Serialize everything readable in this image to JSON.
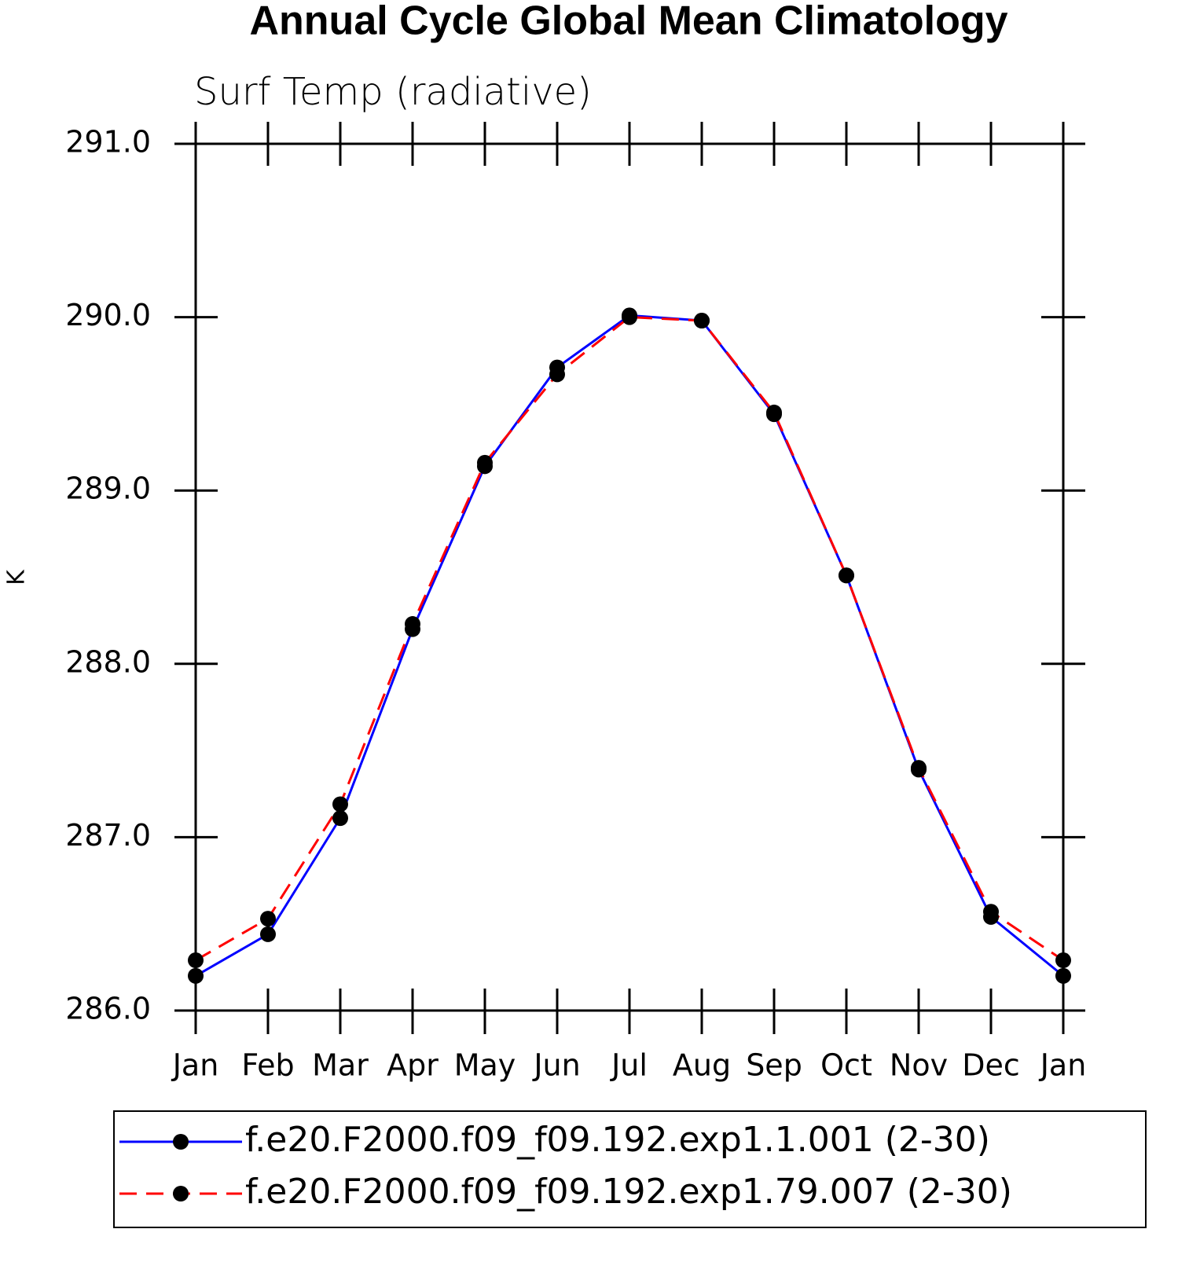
{
  "chart_data": {
    "type": "line",
    "title": "Annual Cycle Global Mean Climatology",
    "subtitle": "Surf Temp (radiative)",
    "y_label": "K",
    "categories": [
      "Jan",
      "Feb",
      "Mar",
      "Apr",
      "May",
      "Jun",
      "Jul",
      "Aug",
      "Sep",
      "Oct",
      "Nov",
      "Dec",
      "Jan"
    ],
    "series": [
      {
        "name": "f.e20.F2000.f09_f09.192.exp1.1.001 (2-30)",
        "color": "#0000ff",
        "dash": "solid",
        "values": [
          286.2,
          286.44,
          287.11,
          288.2,
          289.14,
          289.71,
          290.01,
          289.98,
          289.44,
          288.51,
          287.39,
          286.54,
          286.2
        ]
      },
      {
        "name": "f.e20.F2000.f09_f09.192.exp1.79.007 (2-30)",
        "color": "#ff0000",
        "dash": "dashed",
        "values": [
          286.29,
          286.53,
          287.19,
          288.23,
          289.16,
          289.67,
          290.0,
          289.98,
          289.45,
          288.51,
          287.4,
          286.57,
          286.29
        ]
      }
    ],
    "marker_color": "#000000",
    "ylim": [
      286,
      291
    ],
    "yticks": [
      {
        "value": 286,
        "label": "286.0"
      },
      {
        "value": 287,
        "label": "287.0"
      },
      {
        "value": 288,
        "label": "288.0"
      },
      {
        "value": 289,
        "label": "289.0"
      },
      {
        "value": 290,
        "label": "290.0"
      },
      {
        "value": 291,
        "label": "291.0"
      }
    ],
    "legend": "bottom"
  }
}
